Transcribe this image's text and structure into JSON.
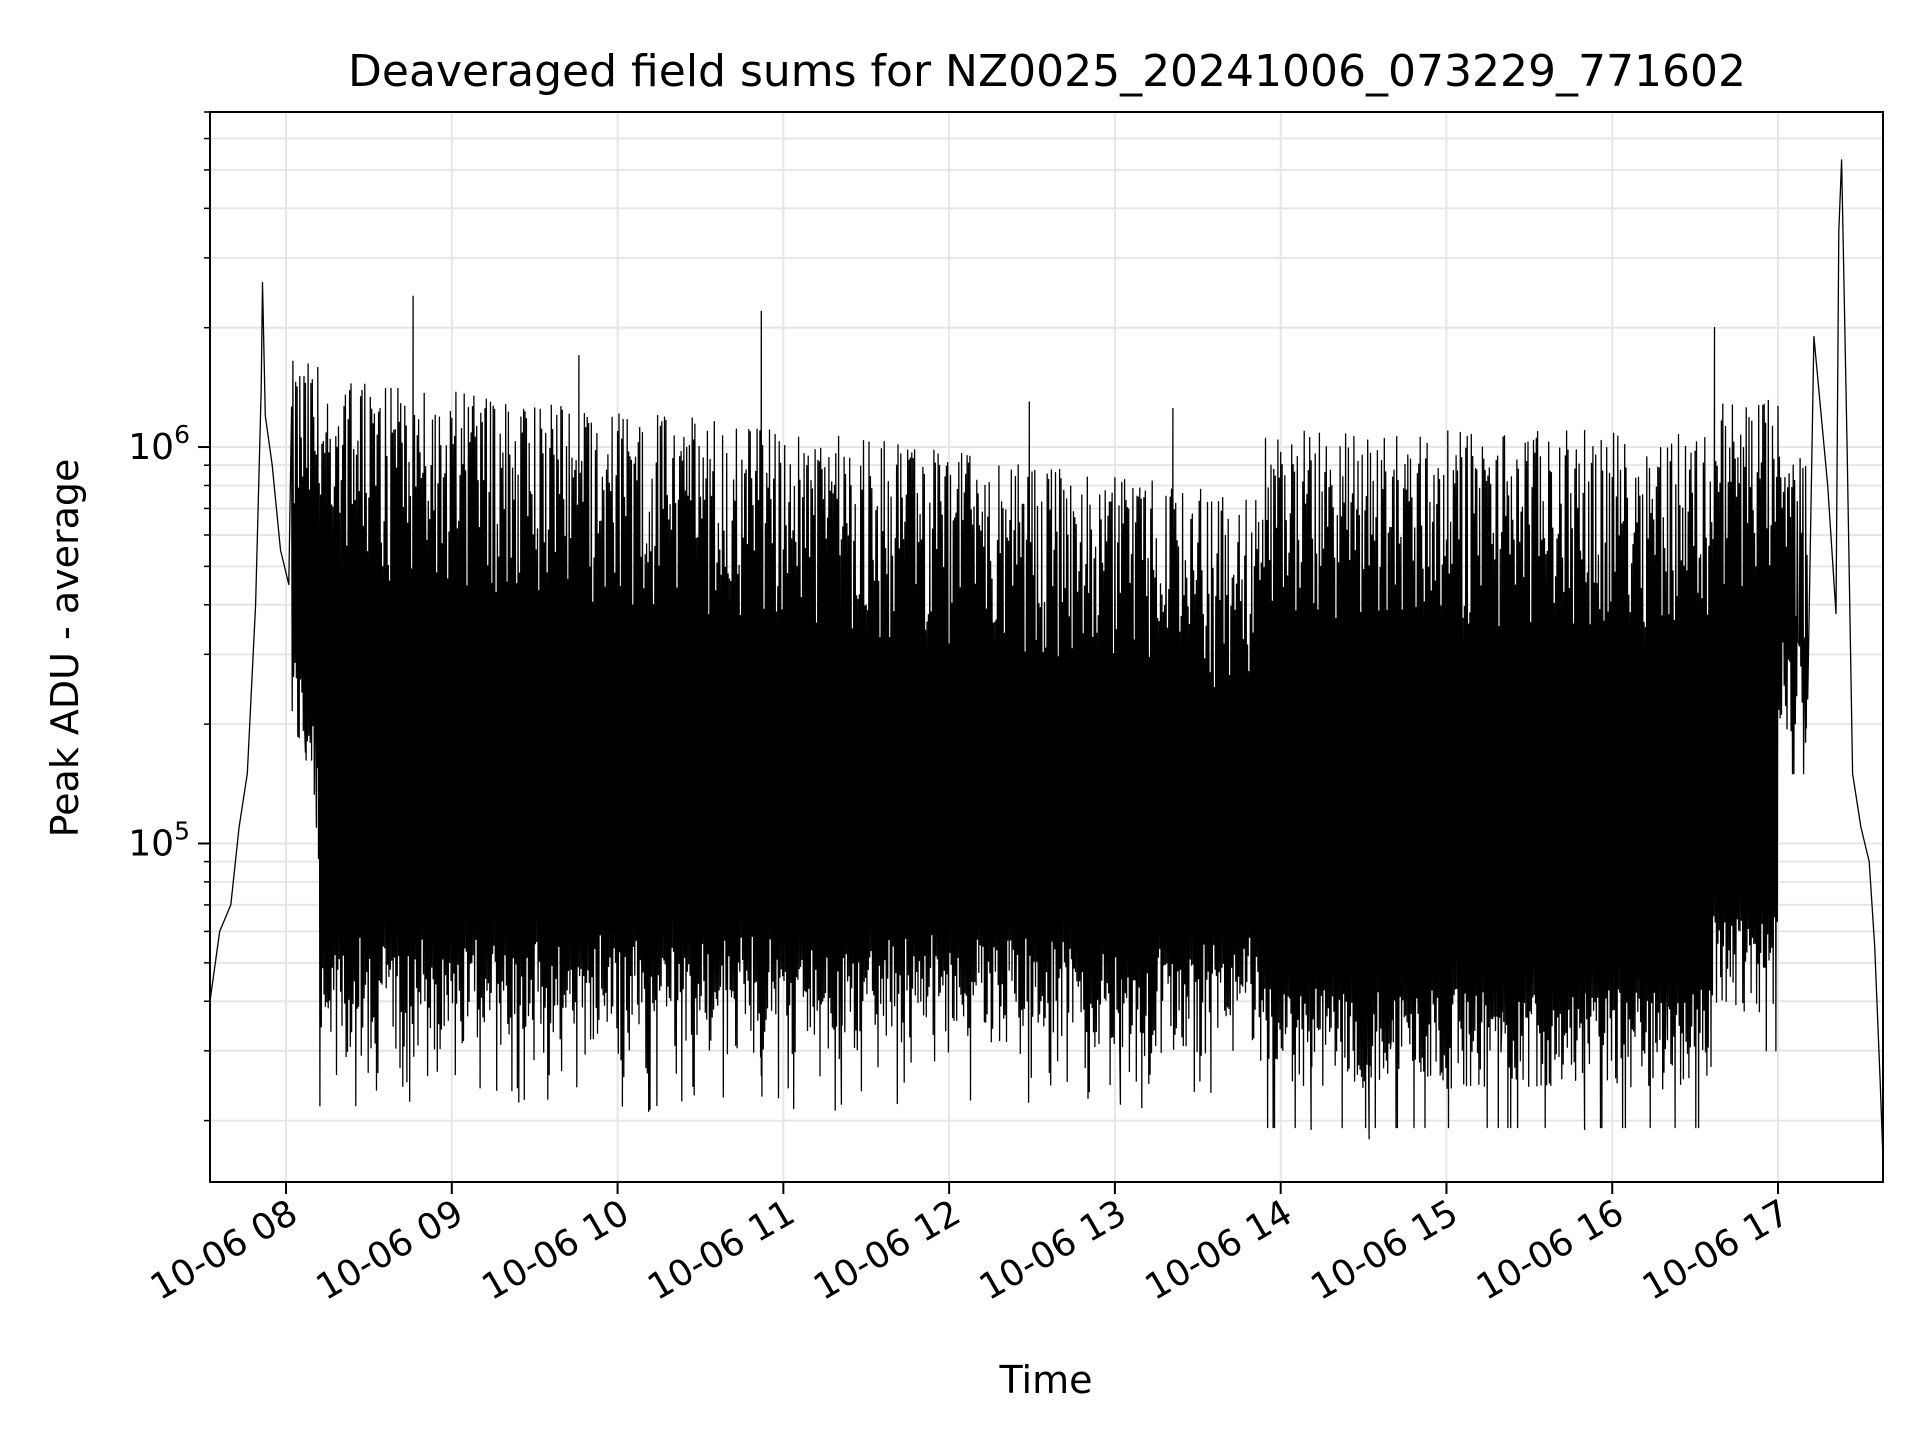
{
  "chart_data": {
    "type": "line",
    "title": "Deaveraged field sums for NZ0025_20241006_073229_771602",
    "xlabel": "Time",
    "ylabel": "Peak ADU - average",
    "yscale": "log",
    "ylim": [
      14000,
      7000000
    ],
    "xlim": [
      "2024-10-06 07:32:29",
      "2024-10-06 17:38:00"
    ],
    "grid": true,
    "legend": "none",
    "x_ticks": [
      "10-06 08",
      "10-06 09",
      "10-06 10",
      "10-06 11",
      "10-06 12",
      "10-06 13",
      "10-06 14",
      "10-06 15",
      "10-06 16",
      "10-06 17"
    ],
    "y_ticks": [
      {
        "base": "10",
        "exp": "5",
        "value": 100000
      },
      {
        "base": "10",
        "exp": "6",
        "value": 1000000
      }
    ],
    "series": [
      {
        "color": "#000000",
        "points": [
          [
            "2024-10-06 07:32:29",
            40000
          ],
          [
            "2024-10-06 07:36:00",
            60000
          ],
          [
            "2024-10-06 07:40:00",
            70000
          ],
          [
            "2024-10-06 07:43:00",
            110000
          ],
          [
            "2024-10-06 07:46:00",
            150000
          ],
          [
            "2024-10-06 07:49:00",
            400000
          ],
          [
            "2024-10-06 07:51:00",
            1400000
          ],
          [
            "2024-10-06 07:51:30",
            2600000
          ],
          [
            "2024-10-06 07:52:30",
            1200000
          ],
          [
            "2024-10-06 07:55:00",
            900000
          ],
          [
            "2024-10-06 07:58:00",
            550000
          ],
          [
            "2024-10-06 08:01:00",
            450000
          ],
          [
            "2024-10-06 08:04:00",
            300000
          ],
          [
            "2024-10-06 08:07:00",
            170000
          ],
          [
            "2024-10-06 08:11:00",
            110000
          ],
          [
            "2024-10-06 08:15:00",
            75000
          ],
          [
            "2024-10-06 08:20:00",
            55000
          ],
          [
            "2024-10-06 08:26:00",
            45000
          ],
          [
            "2024-10-06 08:46:00",
            2400000
          ],
          [
            "2024-10-06 09:46:00",
            1700000
          ],
          [
            "2024-10-06 10:52:00",
            2200000
          ],
          [
            "2024-10-06 10:52:00",
            26000
          ],
          [
            "2024-10-06 11:21:00",
            22000
          ],
          [
            "2024-10-06 12:29:00",
            1300000
          ],
          [
            "2024-10-06 13:02:00",
            22000
          ],
          [
            "2024-10-06 13:21:00",
            1250000
          ],
          [
            "2024-10-06 14:11:00",
            19000
          ],
          [
            "2024-10-06 14:19:00",
            650000
          ],
          [
            "2024-10-06 14:32:00",
            18000
          ],
          [
            "2024-10-06 14:40:00",
            32000
          ],
          [
            "2024-10-06 15:20:00",
            34000
          ],
          [
            "2024-10-06 15:50:00",
            19000
          ],
          [
            "2024-10-06 16:20:00",
            32000
          ],
          [
            "2024-10-06 16:37:00",
            2000000
          ],
          [
            "2024-10-06 16:55:00",
            50000
          ],
          [
            "2024-10-06 17:05:00",
            300000
          ],
          [
            "2024-10-06 17:10:00",
            180000
          ],
          [
            "2024-10-06 17:13:00",
            1900000
          ],
          [
            "2024-10-06 17:18:00",
            800000
          ],
          [
            "2024-10-06 17:21:00",
            380000
          ],
          [
            "2024-10-06 17:22:00",
            3500000
          ],
          [
            "2024-10-06 17:23:00",
            5300000
          ],
          [
            "2024-10-06 17:25:00",
            1000000
          ],
          [
            "2024-10-06 17:27:00",
            150000
          ],
          [
            "2024-10-06 17:30:00",
            110000
          ],
          [
            "2024-10-06 17:33:00",
            90000
          ],
          [
            "2024-10-06 17:35:00",
            55000
          ],
          [
            "2024-10-06 17:37:00",
            25000
          ],
          [
            "2024-10-06 17:38:00",
            16000
          ]
        ]
      }
    ]
  }
}
